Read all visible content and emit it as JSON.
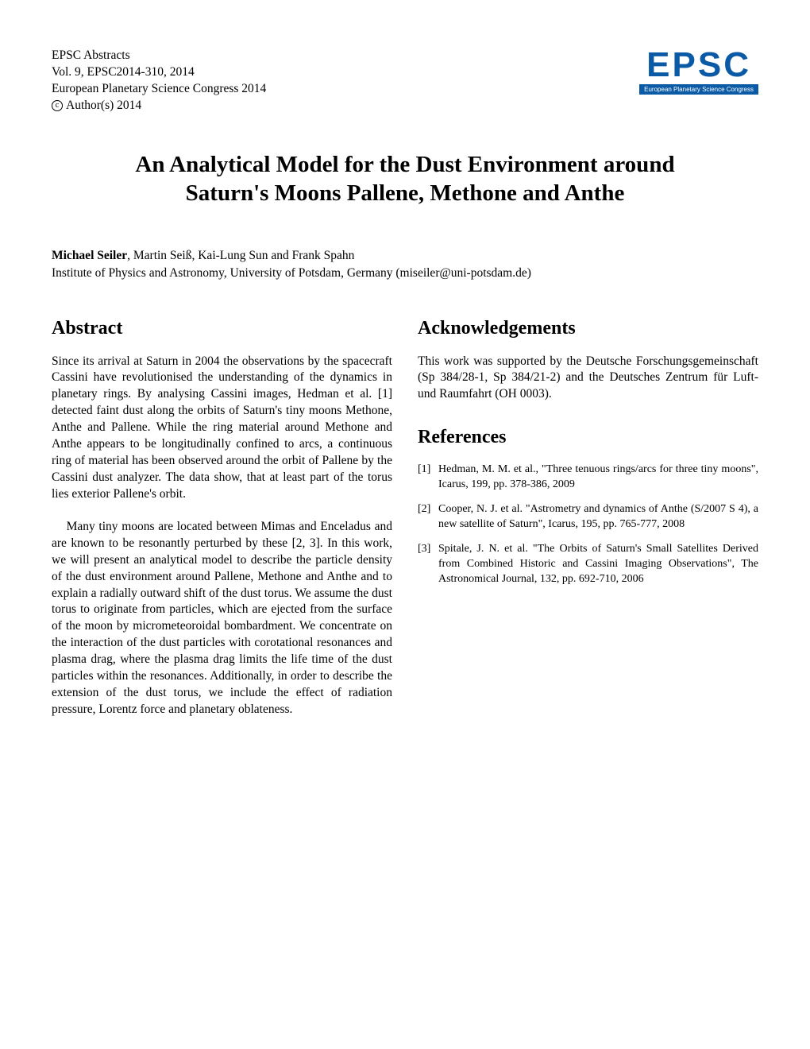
{
  "header": {
    "line1": "EPSC Abstracts",
    "line2": "Vol. 9, EPSC2014-310, 2014",
    "line3": "European Planetary Science Congress 2014",
    "copyright_symbol": "c",
    "copyright_text": "Author(s) 2014"
  },
  "logo": {
    "main": "EPSC",
    "sub": "European Planetary Science Congress",
    "color": "#0b5aa5",
    "text_color": "#ffffff"
  },
  "title": {
    "line1": "An Analytical Model for the Dust Environment around",
    "line2": "Saturn's Moons Pallene, Methone and Anthe"
  },
  "authors": {
    "lead": "Michael Seiler",
    "rest": ", Martin Seiß, Kai-Lung Sun and Frank Spahn",
    "affiliation": "Institute of Physics and Astronomy, University of Potsdam, Germany (miseiler@uni-potsdam.de)"
  },
  "abstract": {
    "heading": "Abstract",
    "p1": "Since its arrival at Saturn in 2004 the observations by the spacecraft Cassini have revolutionised the understanding of the dynamics in planetary rings. By analysing Cassini images, Hedman et al. [1] detected faint dust along the orbits of Saturn's tiny moons Methone, Anthe and Pallene. While the ring material around Methone and Anthe appears to be longitudinally confined to arcs, a continuous ring of material has been observed around the orbit of Pallene by the Cassini dust analyzer. The data show, that at least part of the torus lies exterior Pallene's orbit.",
    "p2": "Many tiny moons are located between Mimas and Enceladus and are known to be resonantly perturbed by these [2, 3]. In this work, we will present an analytical model to describe the particle density of the dust environment around Pallene, Methone and Anthe and to explain a radially outward shift of the dust torus. We assume the dust torus to originate from particles, which are ejected from the surface of the moon by micrometeoroidal bombardment. We concentrate on the interaction of the dust particles with corotational resonances and plasma drag, where the plasma drag limits the life time of the dust particles within the resonances. Additionally, in order to describe the extension of the dust torus, we include the effect of radiation pressure, Lorentz force and planetary oblateness."
  },
  "acknowledgements": {
    "heading": "Acknowledgements",
    "text": "This work was supported by the Deutsche Forschungsgemeinschaft (Sp 384/28-1, Sp 384/21-2) and the Deutsches Zentrum für Luft- und Raumfahrt (OH 0003)."
  },
  "references": {
    "heading": "References",
    "items": [
      {
        "num": "[1]",
        "text": "Hedman, M. M. et al., \"Three tenuous rings/arcs for three tiny moons\", Icarus, 199, pp. 378-386, 2009"
      },
      {
        "num": "[2]",
        "text": "Cooper, N. J. et al. \"Astrometry and dynamics of Anthe (S/2007 S 4), a new satellite of Saturn\", Icarus, 195, pp. 765-777, 2008"
      },
      {
        "num": "[3]",
        "text": "Spitale, J. N. et al. \"The Orbits of Saturn's Small Satellites Derived from Combined Historic and Cassini Imaging Observations\", The Astronomical Journal, 132, pp. 692-710, 2006"
      }
    ]
  },
  "style": {
    "page_bg": "#ffffff",
    "text_color": "#000000",
    "body_fontsize": 15.5,
    "title_fontsize": 29,
    "heading_fontsize": 24,
    "ref_fontsize": 14
  }
}
